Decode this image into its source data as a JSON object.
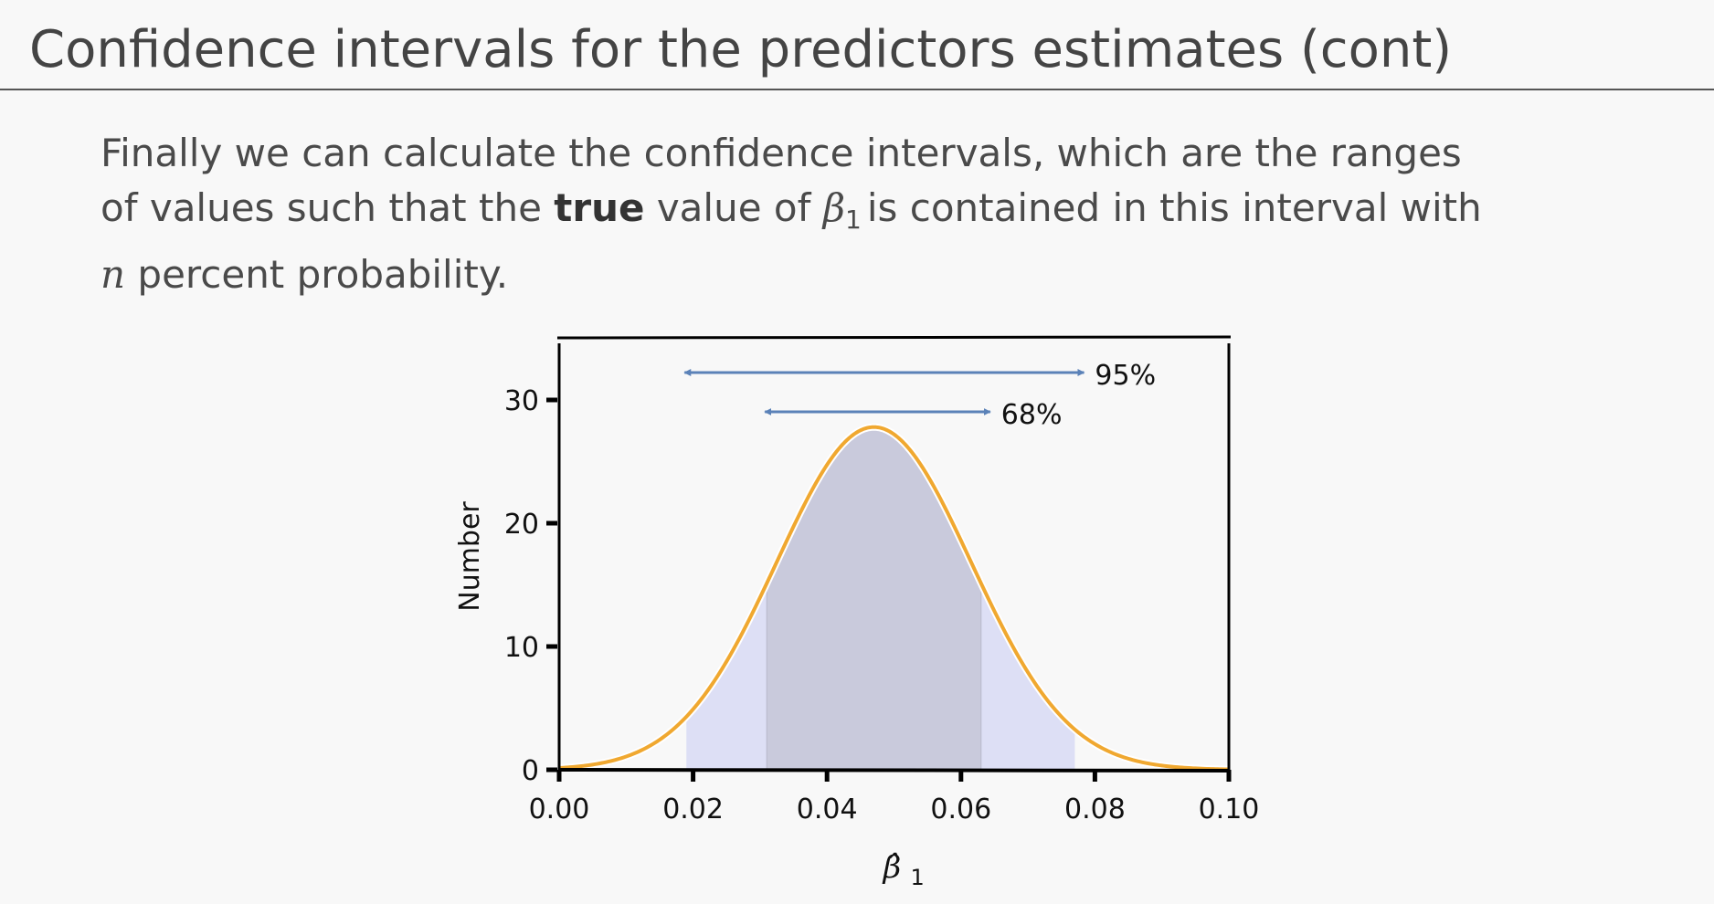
{
  "slide": {
    "title": "Confidence intervals for the predictors estimates (cont)",
    "text_line1": "Finally we can calculate the confidence intervals, which are the ranges",
    "text_line2_pre": "of values such that the ",
    "text_line2_bold": "true",
    "text_line2_mid": " value of ",
    "text_beta": "β",
    "text_beta_sub": "1",
    "text_line2_post": "is contained in this interval with",
    "text_line3_n": "n",
    "text_line3_post": " percent probability."
  },
  "chart_data": {
    "type": "area",
    "distribution": "normal",
    "mean": 0.047,
    "peak": 27.8,
    "sd": 0.0145,
    "x_ticks": [
      "0.00",
      "0.02",
      "0.04",
      "0.06",
      "0.08",
      "0.10"
    ],
    "y_ticks": [
      "0",
      "10",
      "20",
      "30"
    ],
    "xlim": [
      0.0,
      0.1
    ],
    "ylim": [
      0,
      35
    ],
    "xlabel": "β̂1",
    "ylabel": "Number",
    "intervals": [
      {
        "label": "95%",
        "x_from": 0.019,
        "x_to": 0.077
      },
      {
        "label": "68%",
        "x_from": 0.031,
        "x_to": 0.063
      }
    ],
    "colors": {
      "curve": "#f0a830",
      "band95": "#dddff5",
      "band68": "#c9cadc",
      "arrow": "#5b82b8"
    }
  }
}
